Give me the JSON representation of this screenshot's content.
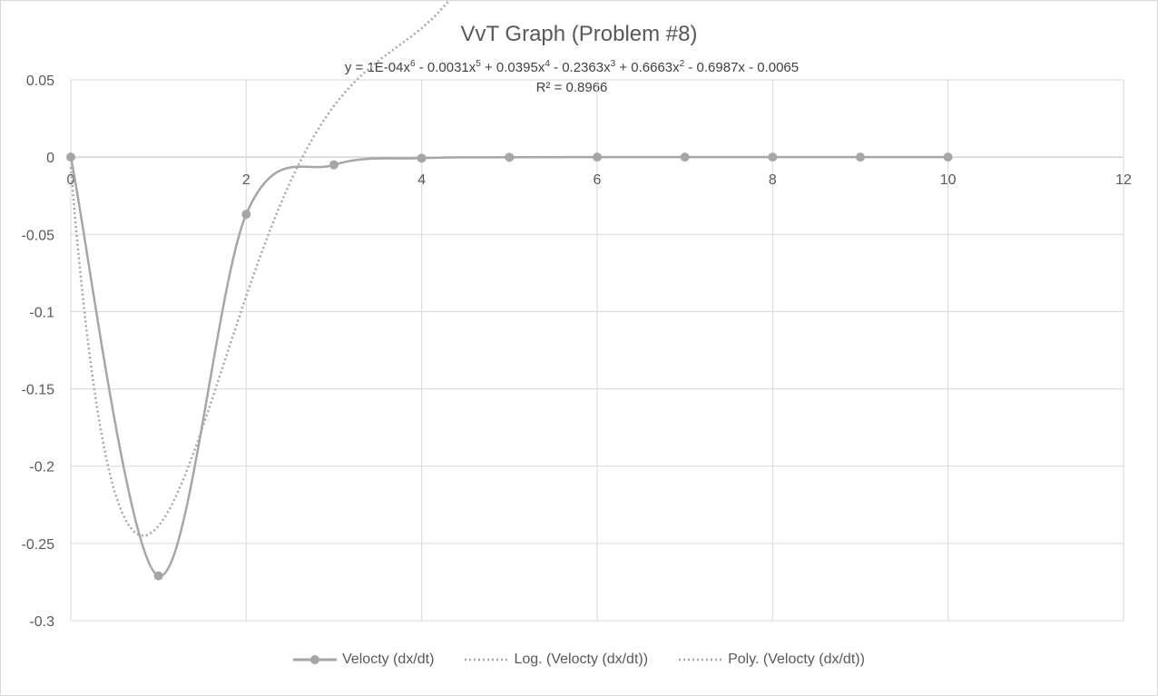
{
  "chart_data": {
    "type": "scatter",
    "title": "VvT Graph (Problem #8)",
    "xlabel": "",
    "ylabel": "",
    "xlim": [
      0,
      12
    ],
    "ylim": [
      -0.3,
      0.05
    ],
    "x_ticks": [
      "0",
      "2",
      "4",
      "6",
      "8",
      "10",
      "12"
    ],
    "y_ticks": [
      "0.05",
      "0",
      "-0.05",
      "-0.1",
      "-0.15",
      "-0.2",
      "-0.25",
      "-0.3"
    ],
    "grid": true,
    "legend_position": "bottom",
    "series": [
      {
        "name": "Velocty (dx/dt)",
        "style": "smooth line with circle markers",
        "color": "#a6a6a6",
        "x": [
          0,
          1,
          2,
          3,
          4,
          5,
          6,
          7,
          8,
          9,
          10
        ],
        "y": [
          0,
          -0.271,
          -0.037,
          -0.005,
          -0.0007,
          -0.0001,
          0,
          0,
          0,
          0,
          0
        ]
      }
    ],
    "trendlines": [
      {
        "name": "Log.  (Velocty (dx/dt))",
        "type": "logarithmic",
        "style": "dotted",
        "color": "#a6a6a6"
      },
      {
        "name": "Poly.  (Velocty (dx/dt))",
        "type": "polynomial",
        "order": 6,
        "style": "dotted",
        "color": "#a6a6a6",
        "coefficients_high_to_low": [
          0.0001,
          -0.0031,
          0.0395,
          -0.2363,
          0.6663,
          -0.6987,
          -0.0065
        ],
        "equation_parts": [
          "y = 1E-04x",
          "6",
          " - 0.0031x",
          "5",
          " + 0.0395x",
          "4",
          " - 0.2363x",
          "3",
          " + 0.6663x",
          "2",
          " - 0.6987x - 0.0065"
        ],
        "r_squared_label": "R² = 0.8966"
      }
    ]
  }
}
